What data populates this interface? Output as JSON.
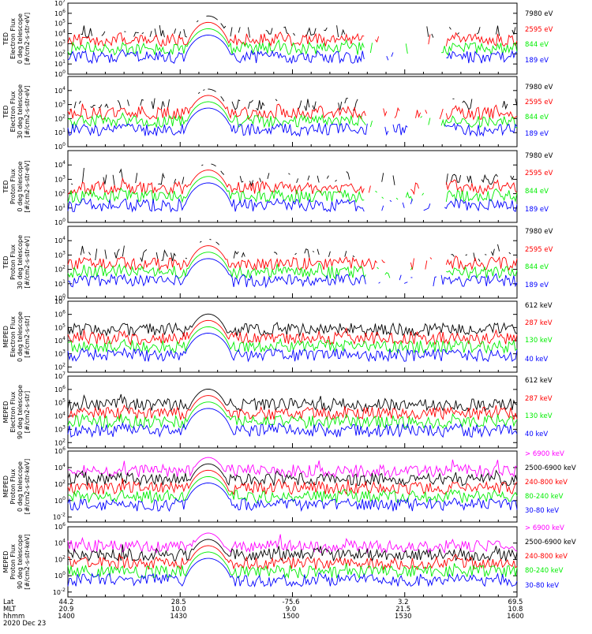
{
  "colors": {
    "black": "#000000",
    "red": "#ff0000",
    "green": "#00ee00",
    "blue": "#0000ff",
    "magenta": "#ff00ff",
    "axis": "#000000"
  },
  "footer": {
    "row_labels": [
      "Lat",
      "MLT",
      "hhmm",
      "2020 Dec 23"
    ],
    "ticks": [
      {
        "lat": "44.2",
        "mlt": "20.9",
        "hhmm": "1400"
      },
      {
        "lat": "28.5",
        "mlt": "10.0",
        "hhmm": "1430"
      },
      {
        "lat": "-75.6",
        "mlt": "9.0",
        "hhmm": "1500"
      },
      {
        "lat": "3.2",
        "mlt": "21.5",
        "hhmm": "1530"
      },
      {
        "lat": "69.5",
        "mlt": "10.8",
        "hhmm": "1600"
      }
    ]
  },
  "chart_data": [
    {
      "type": "line",
      "ylabel": "TED\nElectron Flux\n0 deg telescope\n[#/cm2-s-str-eV]",
      "yscale": "log",
      "yticks": [
        "10^7",
        "10^6",
        "10^5",
        "10^4",
        "10^3",
        "10^2",
        "10^1",
        "10^0"
      ],
      "ylim_exp": [
        0,
        7
      ],
      "series": [
        {
          "name": "7980 eV",
          "color": "black"
        },
        {
          "name": "2595 eV",
          "color": "red"
        },
        {
          "name": "844 eV",
          "color": "green"
        },
        {
          "name": "189 eV",
          "color": "blue"
        }
      ]
    },
    {
      "type": "line",
      "ylabel": "TED\nElectron Flux\n30 deg telescope\n[#/cm2-s-str-eV]",
      "yscale": "log",
      "yticks": [
        "10^4",
        "10^3",
        "10^2",
        "10^1",
        "10^0"
      ],
      "ylim_exp": [
        0,
        5
      ],
      "series": [
        {
          "name": "7980 eV",
          "color": "black"
        },
        {
          "name": "2595 eV",
          "color": "red"
        },
        {
          "name": "844 eV",
          "color": "green"
        },
        {
          "name": "189 eV",
          "color": "blue"
        }
      ]
    },
    {
      "type": "line",
      "ylabel": "TED\nProton Flux\n0 deg telescope\n[#/cm2-s-str-eV]",
      "yscale": "log",
      "yticks": [
        "10^4",
        "10^3",
        "10^2",
        "10^1",
        "10^0"
      ],
      "ylim_exp": [
        0,
        5
      ],
      "series": [
        {
          "name": "7980 eV",
          "color": "black"
        },
        {
          "name": "2595 eV",
          "color": "red"
        },
        {
          "name": "844 eV",
          "color": "green"
        },
        {
          "name": "189 eV",
          "color": "blue"
        }
      ]
    },
    {
      "type": "line",
      "ylabel": "TED\nProton Flux\n30 deg telescope\n[#/cm2-s-str-eV]",
      "yscale": "log",
      "yticks": [
        "10^4",
        "10^3",
        "10^2",
        "10^1",
        "10^0"
      ],
      "ylim_exp": [
        0,
        5
      ],
      "series": [
        {
          "name": "7980 eV",
          "color": "black"
        },
        {
          "name": "2595 eV",
          "color": "red"
        },
        {
          "name": "844 eV",
          "color": "green"
        },
        {
          "name": "189 eV",
          "color": "blue"
        }
      ]
    },
    {
      "type": "line",
      "ylabel": "MEPED\nElectron Flux\n0 deg telescope\n[#/cm2-s-str]",
      "yscale": "log",
      "yticks": [
        "10^7",
        "10^6",
        "10^5",
        "10^4",
        "10^3",
        "10^2"
      ],
      "ylim_exp": [
        1.6,
        7
      ],
      "series": [
        {
          "name": "612 keV",
          "color": "black"
        },
        {
          "name": "287 keV",
          "color": "red"
        },
        {
          "name": "130 keV",
          "color": "green"
        },
        {
          "name": "40 keV",
          "color": "blue"
        }
      ]
    },
    {
      "type": "line",
      "ylabel": "MEPED\nElectron Flux\n90 deg telescope\n[#/cm2-s-str]",
      "yscale": "log",
      "yticks": [
        "10^7",
        "10^6",
        "10^5",
        "10^4",
        "10^3",
        "10^2"
      ],
      "ylim_exp": [
        1.6,
        7
      ],
      "series": [
        {
          "name": "612 keV",
          "color": "black"
        },
        {
          "name": "287 keV",
          "color": "red"
        },
        {
          "name": "130 keV",
          "color": "green"
        },
        {
          "name": "40 keV",
          "color": "blue"
        }
      ]
    },
    {
      "type": "line",
      "ylabel": "MEPED\nProton Flux\n0 deg telescope\n[#/cm2-s-str-keV]",
      "yscale": "log",
      "yticks": [
        "10^6",
        "10^4",
        "10^2",
        "10^0",
        "10^-2"
      ],
      "ylim_exp": [
        -2.6,
        6
      ],
      "series": [
        {
          "name": "> 6900 keV",
          "color": "magenta"
        },
        {
          "name": "2500-6900 keV",
          "color": "black"
        },
        {
          "name": "240-800 keV",
          "color": "red"
        },
        {
          "name": "80-240 keV",
          "color": "green"
        },
        {
          "name": "30-80 keV",
          "color": "blue"
        }
      ]
    },
    {
      "type": "line",
      "ylabel": "MEPED\nProton Flux\n90 deg telescope\n[#/cm2-s-str-keV]",
      "yscale": "log",
      "yticks": [
        "10^6",
        "10^4",
        "10^2",
        "10^0",
        "10^-2"
      ],
      "ylim_exp": [
        -2.6,
        6
      ],
      "series": [
        {
          "name": "> 6900 keV",
          "color": "magenta"
        },
        {
          "name": "2500-6900 keV",
          "color": "black"
        },
        {
          "name": "240-800 keV",
          "color": "red"
        },
        {
          "name": "80-240 keV",
          "color": "green"
        },
        {
          "name": "30-80 keV",
          "color": "blue"
        }
      ]
    }
  ]
}
